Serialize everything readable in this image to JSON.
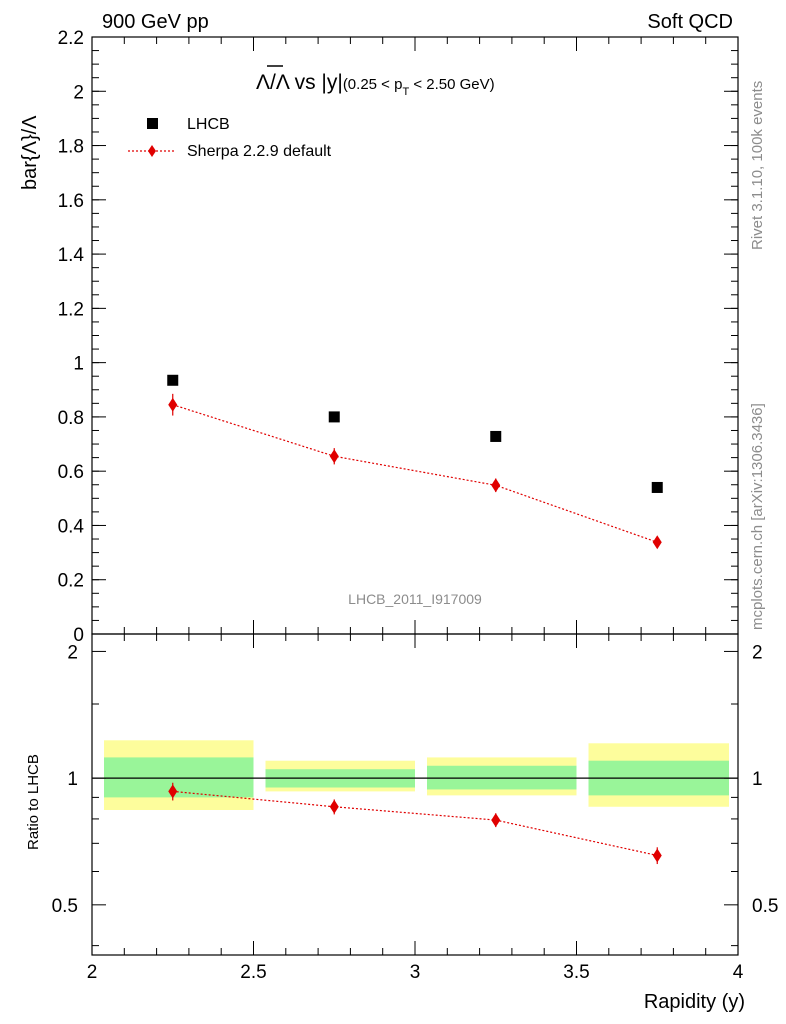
{
  "header": {
    "left": "900 GeV pp",
    "right": "Soft QCD"
  },
  "side_labels": {
    "rivet": "Rivet 3.1.10,  100k events",
    "mcplots": "mcplots.cern.ch [arXiv:1306.3436]"
  },
  "watermark": "LHCB_2011_I917009",
  "chart_data": [
    {
      "type": "scatter",
      "panel": "main",
      "title_main": "Λ/Λ vs |y|",
      "title_sub_pre": "(0.25 < p",
      "title_sub_idx": "T",
      "title_sub_post": " < 2.50 GeV)",
      "ylabel": "bar{Λ}/Λ",
      "xlabel": "",
      "xlim": [
        2,
        4
      ],
      "ylim": [
        0,
        2.2
      ],
      "yticks": [
        "0",
        "0.2",
        "0.4",
        "0.6",
        "0.8",
        "1",
        "1.2",
        "1.4",
        "1.6",
        "1.8",
        "2",
        "2.2"
      ],
      "legend_position": "top-left",
      "series": [
        {
          "name": "LHCB",
          "marker": "square",
          "color": "#000000",
          "x": [
            2.25,
            2.75,
            3.25,
            3.75
          ],
          "y": [
            0.935,
            0.8,
            0.728,
            0.54
          ]
        },
        {
          "name": "Sherpa 2.2.9 default",
          "marker": "diamond",
          "line": "dotted",
          "color": "#e00000",
          "x": [
            2.25,
            2.75,
            3.25,
            3.75
          ],
          "y": [
            0.845,
            0.655,
            0.548,
            0.338
          ],
          "yerr": [
            0.04,
            0.03,
            0.025,
            0.015
          ]
        }
      ]
    },
    {
      "type": "scatter",
      "panel": "ratio",
      "ylabel": "Ratio to LHCB",
      "xlabel": "Rapidity (y)",
      "xlim": [
        2,
        4
      ],
      "ylim": [
        0.38,
        2.2
      ],
      "yticks": [
        "0.5",
        "1",
        "2"
      ],
      "xticks": [
        "2",
        "2.5",
        "3",
        "3.5",
        "4"
      ],
      "reference_line": 1,
      "bands": {
        "x_edges": [
          2.0,
          2.5,
          3.0,
          3.5,
          4.0
        ],
        "inner": [
          [
            0.9,
            1.12
          ],
          [
            0.95,
            1.05
          ],
          [
            0.94,
            1.07
          ],
          [
            0.91,
            1.1
          ]
        ],
        "outer": [
          [
            0.84,
            1.23
          ],
          [
            0.93,
            1.1
          ],
          [
            0.91,
            1.12
          ],
          [
            0.855,
            1.21
          ]
        ],
        "inner_color": "#99f599",
        "outer_color": "#fdfd9c"
      },
      "series": [
        {
          "name": "Sherpa 2.2.9 default",
          "marker": "diamond",
          "line": "dotted",
          "color": "#e00000",
          "x": [
            2.25,
            2.75,
            3.25,
            3.75
          ],
          "y": [
            0.93,
            0.855,
            0.795,
            0.655
          ],
          "yerr": [
            0.045,
            0.035,
            0.03,
            0.03
          ]
        }
      ]
    }
  ]
}
